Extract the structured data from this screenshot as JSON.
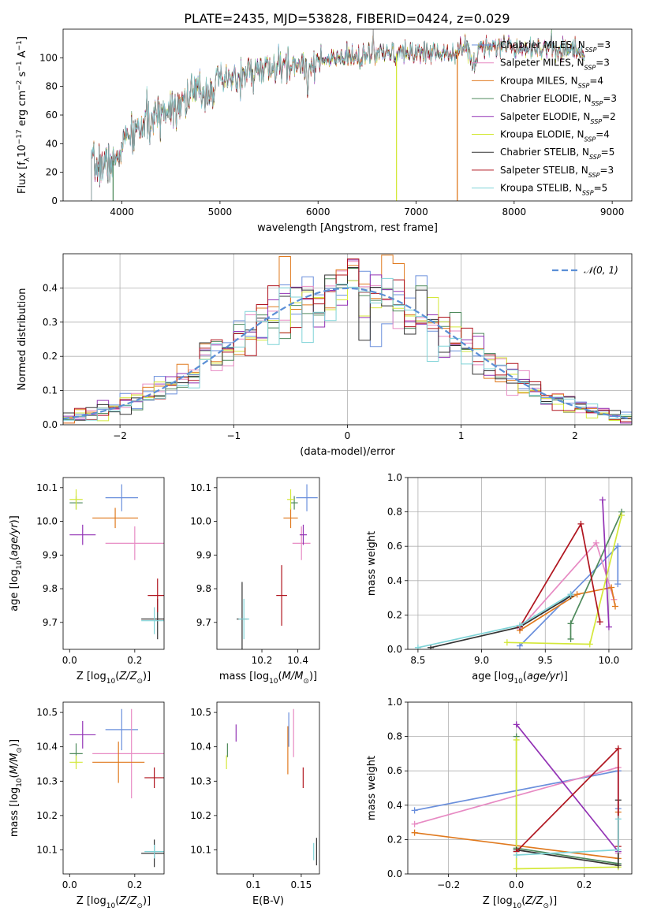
{
  "title": "PLATE=2435, MJD=53828, FIBERID=0424, z=0.029",
  "colors": {
    "chabrier_miles": "#6a8fdc",
    "salpeter_miles": "#e78ac3",
    "kroupa_miles": "#e07a1f",
    "chabrier_elodie": "#4f8a5c",
    "salpeter_elodie": "#9333b5",
    "kroupa_elodie": "#d4e83a",
    "chabrier_stelib": "#333333",
    "salpeter_stelib": "#b0151f",
    "kroupa_stelib": "#7fd3d7"
  },
  "chart_data": [
    {
      "id": "spectrum",
      "type": "line",
      "xlabel": "wavelength [Angstrom, rest frame]",
      "ylabel": "Flux [f_λ10^-17 erg cm^-2 s^-1 A^-1]",
      "xlim": [
        3400,
        9200
      ],
      "ylim": [
        0,
        120
      ],
      "xticks": [
        4000,
        5000,
        6000,
        7000,
        8000,
        9000
      ],
      "yticks": [
        0,
        20,
        40,
        60,
        80,
        100
      ],
      "legend_position": "right",
      "legend": [
        {
          "label": "Chabrier MILES, N",
          "sub": "SSP",
          "suffix": "=3",
          "color": "#6a8fdc"
        },
        {
          "label": "Salpeter MILES, N",
          "sub": "SSP",
          "suffix": "=3",
          "color": "#e78ac3"
        },
        {
          "label": "Kroupa MILES, N",
          "sub": "SSP",
          "suffix": "=4",
          "color": "#e07a1f"
        },
        {
          "label": "Chabrier ELODIE, N",
          "sub": "SSP",
          "suffix": "=3",
          "color": "#4f8a5c"
        },
        {
          "label": "Salpeter ELODIE, N",
          "sub": "SSP",
          "suffix": "=2",
          "color": "#9333b5"
        },
        {
          "label": "Kroupa ELODIE, N",
          "sub": "SSP",
          "suffix": "=4",
          "color": "#d4e83a"
        },
        {
          "label": "Chabrier STELIB, N",
          "sub": "SSP",
          "suffix": "=5",
          "color": "#333333"
        },
        {
          "label": "Salpeter STELIB, N",
          "sub": "SSP",
          "suffix": "=3",
          "color": "#b0151f"
        },
        {
          "label": "Kroupa STELIB, N",
          "sub": "SSP",
          "suffix": "=5",
          "color": "#7fd3d7"
        }
      ],
      "continuum": [
        [
          3700,
          24
        ],
        [
          3900,
          27
        ],
        [
          4000,
          40
        ],
        [
          4200,
          52
        ],
        [
          4400,
          62
        ],
        [
          4700,
          74
        ],
        [
          5000,
          82
        ],
        [
          5300,
          90
        ],
        [
          5600,
          93
        ],
        [
          5900,
          96
        ],
        [
          6200,
          99
        ],
        [
          6600,
          102
        ],
        [
          7000,
          104
        ],
        [
          7300,
          104
        ],
        [
          7700,
          109
        ],
        [
          8000,
          108
        ],
        [
          8500,
          106
        ],
        [
          8700,
          104
        ]
      ],
      "features": [
        [
          3933,
          -10
        ],
        [
          3968,
          -9
        ],
        [
          4102,
          -6
        ],
        [
          4304,
          -8
        ],
        [
          4340,
          -5
        ],
        [
          4861,
          -5
        ],
        [
          5175,
          -8
        ],
        [
          5270,
          -4
        ],
        [
          5893,
          -22
        ],
        [
          6563,
          12
        ],
        [
          6870,
          -4
        ],
        [
          7590,
          -12
        ]
      ],
      "dropouts": [
        {
          "model": "kroupa_elodie",
          "x": 6800
        },
        {
          "model": "kroupa_miles",
          "x": 7420
        },
        {
          "model": "chabrier_elodie",
          "x": 3910
        }
      ]
    },
    {
      "id": "residuals",
      "type": "histogram",
      "xlabel": "(data-model)/error",
      "ylabel": "Normed distribution",
      "xlim": [
        -2.5,
        2.5
      ],
      "ylim": [
        0,
        0.5
      ],
      "xticks": [
        -2,
        -1,
        0,
        1,
        2
      ],
      "yticks": [
        0.0,
        0.1,
        0.2,
        0.3,
        0.4
      ],
      "legend": "𝒩(0, 1)",
      "legend_position": "top-right",
      "bins": 50,
      "grid": true
    },
    {
      "id": "age_vs_Z",
      "type": "scatter",
      "xlabel": "Z [log10(Z/Z⊙)]",
      "ylabel": "age [log10(age/yr)]",
      "xlim": [
        -0.02,
        0.29
      ],
      "ylim": [
        9.62,
        10.13
      ],
      "xticks": [
        0.0,
        0.2
      ],
      "yticks": [
        9.7,
        9.8,
        9.9,
        10.0,
        10.1
      ],
      "points": [
        {
          "model": "chabrier_miles",
          "x": 0.16,
          "y": 10.07,
          "xerr": 0.05,
          "yerr": 0.04
        },
        {
          "model": "salpeter_miles",
          "x": 0.2,
          "y": 9.935,
          "xerr": 0.09,
          "yerr": 0.05
        },
        {
          "model": "kroupa_miles",
          "x": 0.14,
          "y": 10.01,
          "xerr": 0.07,
          "yerr": 0.03
        },
        {
          "model": "chabrier_elodie",
          "x": 0.02,
          "y": 10.055,
          "xerr": 0.02,
          "yerr": 0.02
        },
        {
          "model": "salpeter_elodie",
          "x": 0.04,
          "y": 9.96,
          "xerr": 0.04,
          "yerr": 0.03
        },
        {
          "model": "kroupa_elodie",
          "x": 0.02,
          "y": 10.065,
          "xerr": 0.02,
          "yerr": 0.03
        },
        {
          "model": "chabrier_stelib",
          "x": 0.27,
          "y": 9.71,
          "xerr": 0.05,
          "yerr": 0.06
        },
        {
          "model": "salpeter_stelib",
          "x": 0.27,
          "y": 9.78,
          "xerr": 0.03,
          "yerr": 0.05
        },
        {
          "model": "kroupa_stelib",
          "x": 0.26,
          "y": 9.705,
          "xerr": 0.04,
          "yerr": 0.04
        }
      ]
    },
    {
      "id": "age_vs_mass",
      "type": "scatter",
      "xlabel": "mass [log10(M/M⊙)]",
      "ylabel": "",
      "xlim": [
        9.95,
        10.52
      ],
      "ylim": [
        9.62,
        10.13
      ],
      "xticks": [
        10.2,
        10.4
      ],
      "yticks": [
        9.7,
        9.8,
        9.9,
        10.0,
        10.1
      ],
      "points": [
        {
          "model": "chabrier_miles",
          "x": 10.45,
          "y": 10.07,
          "xerr": 0.06,
          "yerr": 0.04
        },
        {
          "model": "salpeter_miles",
          "x": 10.42,
          "y": 9.935,
          "xerr": 0.05,
          "yerr": 0.05
        },
        {
          "model": "kroupa_miles",
          "x": 10.36,
          "y": 10.01,
          "xerr": 0.04,
          "yerr": 0.03
        },
        {
          "model": "chabrier_elodie",
          "x": 10.38,
          "y": 10.055,
          "xerr": 0.02,
          "yerr": 0.02
        },
        {
          "model": "salpeter_elodie",
          "x": 10.43,
          "y": 9.96,
          "xerr": 0.02,
          "yerr": 0.03
        },
        {
          "model": "kroupa_elodie",
          "x": 10.36,
          "y": 10.065,
          "xerr": 0.02,
          "yerr": 0.03
        },
        {
          "model": "chabrier_stelib",
          "x": 10.09,
          "y": 9.71,
          "xerr": 0.03,
          "yerr": 0.11
        },
        {
          "model": "salpeter_stelib",
          "x": 10.31,
          "y": 9.78,
          "xerr": 0.03,
          "yerr": 0.09
        },
        {
          "model": "kroupa_stelib",
          "x": 10.1,
          "y": 9.71,
          "xerr": 0.03,
          "yerr": 0.06
        }
      ]
    },
    {
      "id": "weight_vs_age",
      "type": "line",
      "xlabel": "age [log10(age/yr)]",
      "ylabel": "mass weight",
      "xlim": [
        8.42,
        10.18
      ],
      "ylim": [
        0,
        1
      ],
      "xticks": [
        8.5,
        9.0,
        9.5,
        10.0
      ],
      "yticks": [
        0.0,
        0.2,
        0.4,
        0.6,
        0.8,
        1.0
      ],
      "grid": true,
      "series": [
        {
          "model": "chabrier_miles",
          "points": [
            [
              9.3,
              0.02
            ],
            [
              9.7,
              0.32
            ],
            [
              10.07,
              0.6
            ],
            [
              10.07,
              0.38
            ]
          ]
        },
        {
          "model": "salpeter_miles",
          "points": [
            [
              9.3,
              0.12
            ],
            [
              9.9,
              0.62
            ],
            [
              10.04,
              0.29
            ]
          ]
        },
        {
          "model": "kroupa_miles",
          "points": [
            [
              9.3,
              0.11
            ],
            [
              9.75,
              0.32
            ],
            [
              10.02,
              0.36
            ],
            [
              10.05,
              0.25
            ]
          ]
        },
        {
          "model": "chabrier_elodie",
          "points": [
            [
              9.7,
              0.06
            ],
            [
              9.7,
              0.15
            ],
            [
              10.1,
              0.8
            ]
          ]
        },
        {
          "model": "salpeter_elodie",
          "points": [
            [
              9.95,
              0.87
            ],
            [
              10.0,
              0.13
            ]
          ]
        },
        {
          "model": "kroupa_elodie",
          "points": [
            [
              9.2,
              0.04
            ],
            [
              9.85,
              0.03
            ],
            [
              10.1,
              0.78
            ]
          ]
        },
        {
          "model": "chabrier_stelib",
          "points": [
            [
              8.6,
              0.01
            ],
            [
              9.3,
              0.13
            ],
            [
              9.7,
              0.31
            ]
          ]
        },
        {
          "model": "salpeter_stelib",
          "points": [
            [
              9.3,
              0.13
            ],
            [
              9.78,
              0.73
            ],
            [
              9.93,
              0.16
            ]
          ]
        },
        {
          "model": "kroupa_stelib",
          "points": [
            [
              8.5,
              0.01
            ],
            [
              9.3,
              0.14
            ],
            [
              9.7,
              0.32
            ]
          ]
        }
      ]
    },
    {
      "id": "mass_vs_Z",
      "type": "scatter",
      "xlabel": "Z [log10(Z/Z⊙)]",
      "ylabel": "mass [log10(M/M⊙)]",
      "xlim": [
        -0.02,
        0.29
      ],
      "ylim": [
        10.03,
        10.53
      ],
      "xticks": [
        0.0,
        0.2
      ],
      "yticks": [
        10.1,
        10.2,
        10.3,
        10.4,
        10.5
      ],
      "points": [
        {
          "model": "chabrier_miles",
          "x": 0.16,
          "y": 10.45,
          "xerr": 0.05,
          "yerr": 0.06
        },
        {
          "model": "salpeter_miles",
          "x": 0.19,
          "y": 10.38,
          "xerr": 0.12,
          "yerr": 0.13
        },
        {
          "model": "kroupa_miles",
          "x": 0.15,
          "y": 10.355,
          "xerr": 0.08,
          "yerr": 0.06
        },
        {
          "model": "chabrier_elodie",
          "x": 0.02,
          "y": 10.38,
          "xerr": 0.02,
          "yerr": 0.03
        },
        {
          "model": "salpeter_elodie",
          "x": 0.04,
          "y": 10.435,
          "xerr": 0.04,
          "yerr": 0.04
        },
        {
          "model": "kroupa_elodie",
          "x": 0.02,
          "y": 10.355,
          "xerr": 0.02,
          "yerr": 0.02
        },
        {
          "model": "chabrier_stelib",
          "x": 0.26,
          "y": 10.09,
          "xerr": 0.04,
          "yerr": 0.04
        },
        {
          "model": "salpeter_stelib",
          "x": 0.26,
          "y": 10.31,
          "xerr": 0.03,
          "yerr": 0.03
        },
        {
          "model": "kroupa_stelib",
          "x": 0.26,
          "y": 10.095,
          "xerr": 0.03,
          "yerr": 0.02
        }
      ]
    },
    {
      "id": "mass_vs_ebv",
      "type": "scatter",
      "xlabel": "E(B-V)",
      "ylabel": "",
      "xlim": [
        0.062,
        0.169
      ],
      "ylim": [
        10.03,
        10.53
      ],
      "xticks": [
        0.1,
        0.15
      ],
      "yticks": [
        10.1,
        10.2,
        10.3,
        10.4,
        10.5
      ],
      "points": [
        {
          "model": "chabrier_miles",
          "x": 0.137,
          "y": 10.45,
          "xerr": 0,
          "yerr": 0.05
        },
        {
          "model": "salpeter_miles",
          "x": 0.142,
          "y": 10.44,
          "xerr": 0,
          "yerr": 0.07
        },
        {
          "model": "kroupa_miles",
          "x": 0.136,
          "y": 10.39,
          "xerr": 0,
          "yerr": 0.07
        },
        {
          "model": "chabrier_elodie",
          "x": 0.073,
          "y": 10.39,
          "xerr": 0,
          "yerr": 0.02
        },
        {
          "model": "salpeter_elodie",
          "x": 0.082,
          "y": 10.44,
          "xerr": 0,
          "yerr": 0.025
        },
        {
          "model": "kroupa_elodie",
          "x": 0.072,
          "y": 10.355,
          "xerr": 0,
          "yerr": 0.02
        },
        {
          "model": "chabrier_stelib",
          "x": 0.166,
          "y": 10.095,
          "xerr": 0,
          "yerr": 0.04
        },
        {
          "model": "salpeter_stelib",
          "x": 0.152,
          "y": 10.31,
          "xerr": 0,
          "yerr": 0.03
        },
        {
          "model": "kroupa_stelib",
          "x": 0.163,
          "y": 10.095,
          "xerr": 0,
          "yerr": 0.025
        }
      ]
    },
    {
      "id": "weight_vs_Z",
      "type": "line",
      "xlabel": "Z [log10(Z/Z⊙)]",
      "ylabel": "mass weight",
      "xlim": [
        -0.32,
        0.34
      ],
      "ylim": [
        0,
        1
      ],
      "xticks": [
        -0.2,
        0.0,
        0.2
      ],
      "yticks": [
        0.0,
        0.2,
        0.4,
        0.6,
        0.8,
        1.0
      ],
      "grid": true,
      "series": [
        {
          "model": "chabrier_miles",
          "points": [
            [
              -0.3,
              0.37
            ],
            [
              0.3,
              0.6
            ],
            [
              0.3,
              0.38
            ]
          ]
        },
        {
          "model": "salpeter_miles",
          "points": [
            [
              -0.3,
              0.29
            ],
            [
              0.3,
              0.62
            ],
            [
              0.3,
              0.12
            ]
          ]
        },
        {
          "model": "kroupa_miles",
          "points": [
            [
              -0.3,
              0.24
            ],
            [
              0.3,
              0.09
            ],
            [
              0.3,
              0.36
            ]
          ]
        },
        {
          "model": "chabrier_elodie",
          "points": [
            [
              0.0,
              0.8
            ],
            [
              0.0,
              0.15
            ],
            [
              0.3,
              0.06
            ]
          ]
        },
        {
          "model": "salpeter_elodie",
          "points": [
            [
              0.0,
              0.87
            ],
            [
              0.3,
              0.13
            ]
          ]
        },
        {
          "model": "kroupa_elodie",
          "points": [
            [
              0.0,
              0.78
            ],
            [
              0.0,
              0.03
            ],
            [
              0.3,
              0.04
            ]
          ]
        },
        {
          "model": "chabrier_stelib",
          "points": [
            [
              0.0,
              0.14
            ],
            [
              0.3,
              0.05
            ],
            [
              0.3,
              0.43
            ]
          ]
        },
        {
          "model": "salpeter_stelib",
          "points": [
            [
              0.0,
              0.13
            ],
            [
              0.3,
              0.73
            ],
            [
              0.3,
              0.16
            ]
          ]
        },
        {
          "model": "kroupa_stelib",
          "points": [
            [
              0.0,
              0.11
            ],
            [
              0.3,
              0.14
            ],
            [
              0.3,
              0.32
            ]
          ]
        }
      ]
    }
  ]
}
